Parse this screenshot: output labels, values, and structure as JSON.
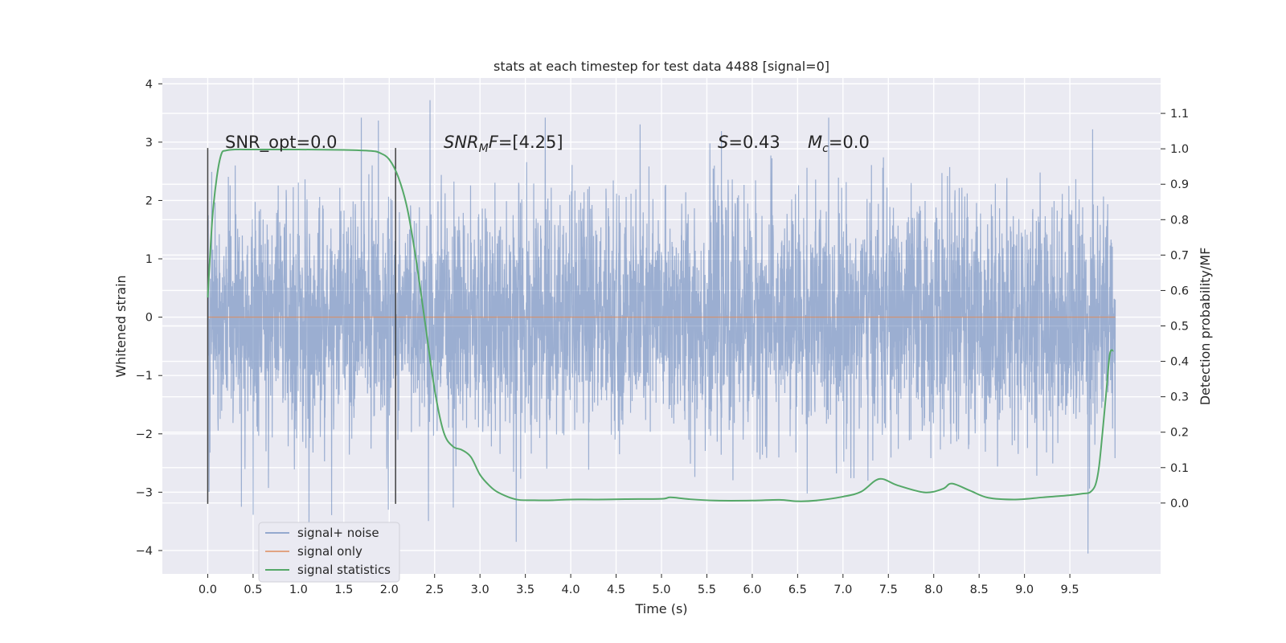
{
  "chart_data": {
    "type": "line",
    "title": "stats at each timestep for test data 4488 [signal=0]",
    "xlabel": "Time (s)",
    "ylabel": "Whitened strain",
    "ylabel_right": "Detection probability/MF",
    "xlim": [
      -0.5,
      10.5
    ],
    "ylim": [
      -4.4,
      4.1
    ],
    "ylim_right": [
      -0.2,
      1.2
    ],
    "x_ticks": [
      0.0,
      0.5,
      1.0,
      1.5,
      2.0,
      2.5,
      3.0,
      3.5,
      4.0,
      4.5,
      5.0,
      5.5,
      6.0,
      6.5,
      7.0,
      7.5,
      8.0,
      8.5,
      9.0,
      9.5
    ],
    "x_tick_labels": [
      "0.0",
      "0.5",
      "1.0",
      "1.5",
      "2.0",
      "2.5",
      "3.0",
      "3.5",
      "4.0",
      "4.5",
      "5.0",
      "5.5",
      "6.0",
      "6.5",
      "7.0",
      "7.5",
      "8.0",
      "8.5",
      "9.0",
      "9.5"
    ],
    "y_ticks": [
      -4,
      -3,
      -2,
      -1,
      0,
      1,
      2,
      3,
      4
    ],
    "y_tick_labels": [
      "−4",
      "−3",
      "−2",
      "−1",
      "0",
      "1",
      "2",
      "3",
      "4"
    ],
    "y_right_ticks": [
      0.0,
      0.1,
      0.2,
      0.3,
      0.4,
      0.5,
      0.6,
      0.7,
      0.8,
      0.9,
      1.0,
      1.1
    ],
    "y_right_tick_labels": [
      "0.0",
      "0.1",
      "0.2",
      "0.3",
      "0.4",
      "0.5",
      "0.6",
      "0.7",
      "0.8",
      "0.9",
      "1.0",
      "1.1"
    ],
    "grid": true,
    "legend_placement": "lower-left",
    "series": [
      {
        "name": "signal+ noise",
        "color": "#4c72b0",
        "x_range": [
          0.0,
          10.0
        ],
        "envelope": {
          "typical_abs": 1.0,
          "max": 3.72,
          "min": -4.05,
          "notable_peaks": [
            {
              "x": 2.45,
              "y": 3.72
            },
            {
              "x": 9.75,
              "y": 3.22
            },
            {
              "x": 1.88,
              "y": 3.37
            },
            {
              "x": 3.4,
              "y": -3.85
            },
            {
              "x": 9.7,
              "y": -4.05
            },
            {
              "x": 0.37,
              "y": -3.25
            },
            {
              "x": 1.99,
              "y": -3.3
            }
          ]
        }
      },
      {
        "name": "signal only",
        "color": "#dd8452",
        "x": [
          0.0,
          10.0
        ],
        "y": [
          0.0,
          0.0
        ]
      },
      {
        "name": "signal statistics",
        "color": "#55a868",
        "axis": "right",
        "x": [
          0.0,
          0.05,
          0.1,
          0.15,
          0.2,
          0.3,
          0.5,
          1.0,
          1.5,
          1.8,
          1.9,
          2.0,
          2.1,
          2.2,
          2.3,
          2.4,
          2.5,
          2.6,
          2.7,
          2.8,
          2.9,
          3.0,
          3.1,
          3.2,
          3.4,
          3.6,
          3.8,
          4.0,
          4.3,
          4.6,
          5.0,
          5.1,
          5.3,
          5.6,
          6.0,
          6.3,
          6.5,
          6.7,
          7.0,
          7.2,
          7.4,
          7.6,
          7.9,
          8.1,
          8.2,
          8.4,
          8.6,
          8.9,
          9.2,
          9.5,
          9.65,
          9.72,
          9.78,
          9.82,
          9.86,
          9.9,
          9.94,
          9.98
        ],
        "y": [
          0.58,
          0.8,
          0.92,
          0.985,
          0.995,
          0.998,
          0.998,
          0.998,
          0.997,
          0.994,
          0.988,
          0.97,
          0.92,
          0.83,
          0.68,
          0.5,
          0.32,
          0.2,
          0.16,
          0.15,
          0.13,
          0.08,
          0.05,
          0.03,
          0.01,
          0.008,
          0.008,
          0.01,
          0.01,
          0.011,
          0.012,
          0.016,
          0.011,
          0.007,
          0.007,
          0.009,
          0.005,
          0.007,
          0.018,
          0.032,
          0.068,
          0.05,
          0.03,
          0.04,
          0.055,
          0.035,
          0.015,
          0.01,
          0.016,
          0.022,
          0.027,
          0.03,
          0.05,
          0.1,
          0.2,
          0.31,
          0.42,
          0.43
        ]
      }
    ],
    "vertical_lines": [
      {
        "x": 0.0,
        "y_from": -3.2,
        "y_to": 2.9
      },
      {
        "x": 2.07,
        "y_from": -3.2,
        "y_to": 2.9
      }
    ],
    "annotations": [
      {
        "id": "snr_opt",
        "x": 0.2,
        "y": 2.9,
        "text": "SNR_opt=0.0"
      },
      {
        "id": "snr_mf",
        "x": 2.6,
        "y": 2.9,
        "text": "SNR_MF=[4.25]"
      },
      {
        "id": "s_stat",
        "x": 5.6,
        "y": 2.9,
        "text": "S=0.43"
      },
      {
        "id": "m_c",
        "x": 6.6,
        "y": 2.9,
        "text": "M_c=0.0"
      }
    ]
  },
  "annotation_parts": {
    "snr_opt": "SNR_opt=0.0",
    "snr_mf_base": "SNR",
    "snr_mf_sub": "M",
    "snr_mf_rest": "F",
    "snr_mf_value": "=[4.25]",
    "s_letter": "S",
    "s_value": "=0.43",
    "mc_letter": "M",
    "mc_sub": "c",
    "mc_value": "=0.0"
  },
  "colors": {
    "background": "#eaeaf2",
    "grid": "#ffffff",
    "noise": "#4c72b0",
    "signal": "#dd8452",
    "stats": "#55a868",
    "marker_line": "#404040"
  }
}
